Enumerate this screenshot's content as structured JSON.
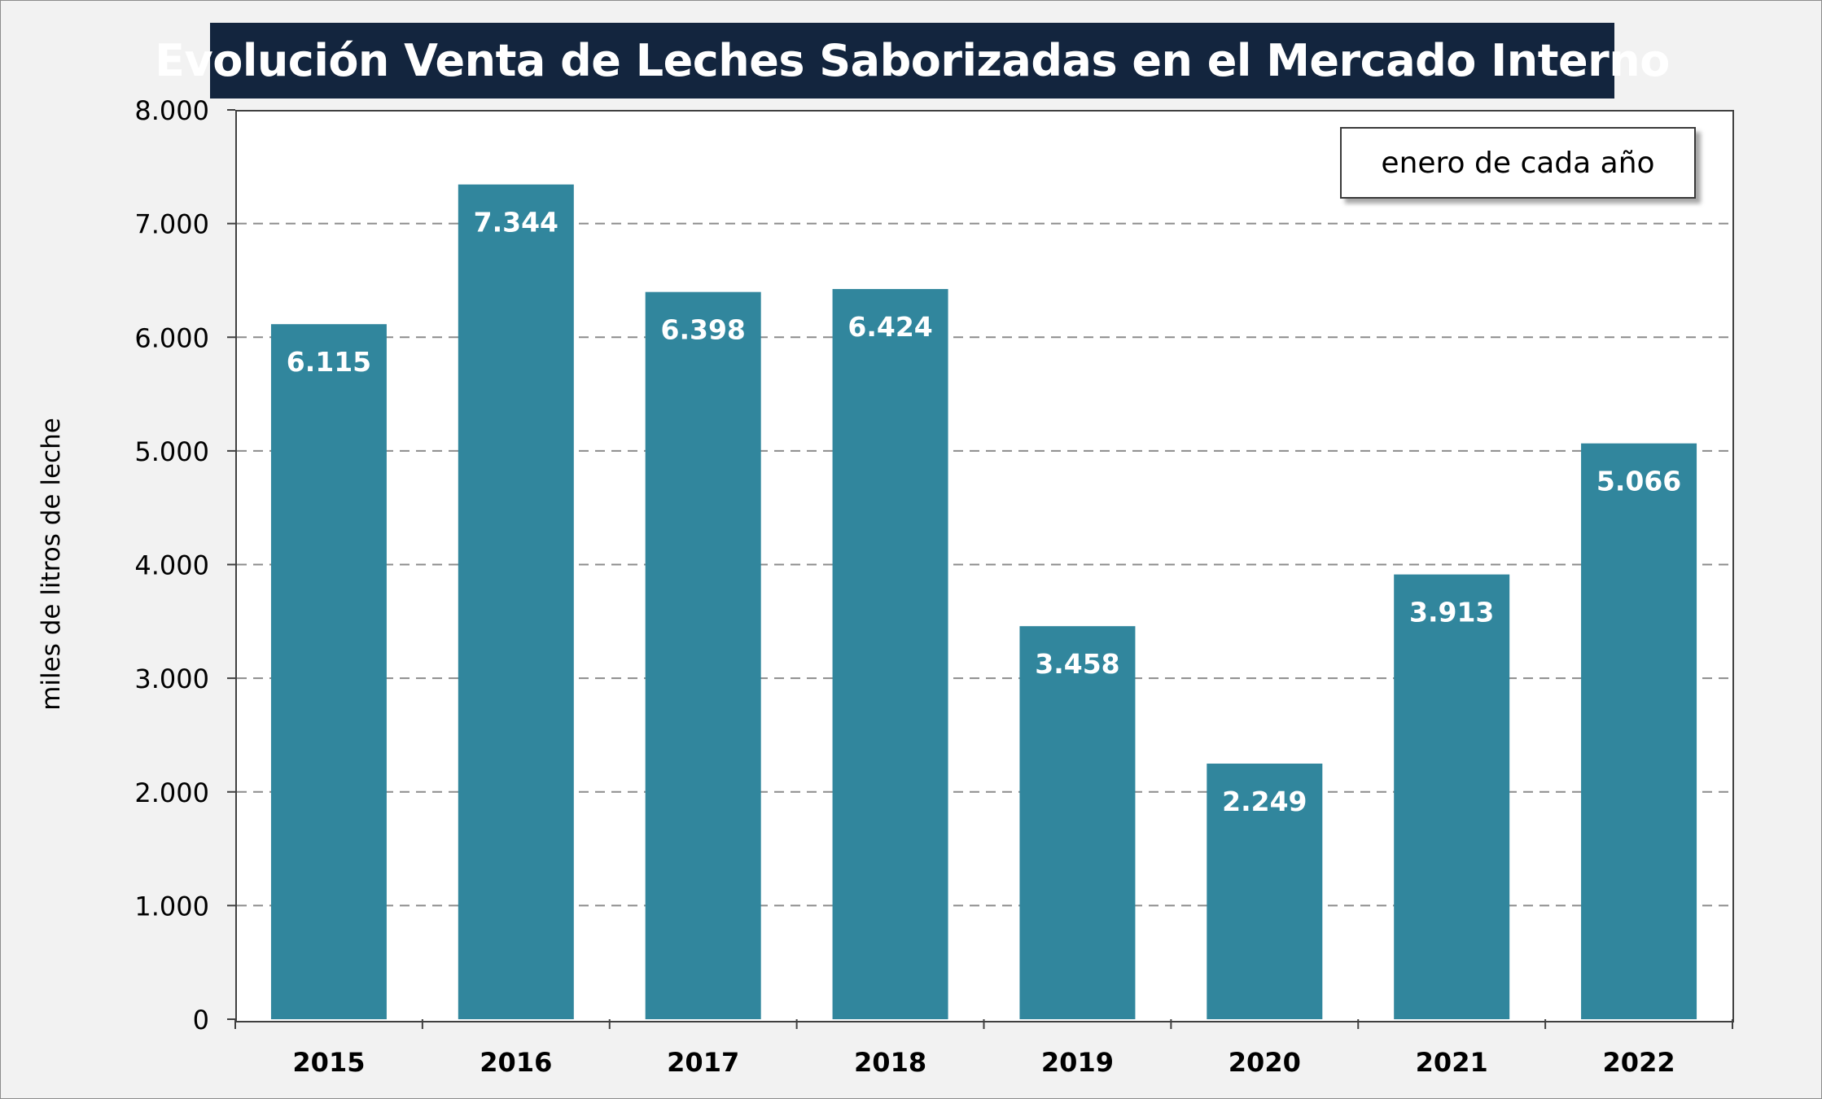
{
  "chart_data": {
    "type": "bar",
    "title": "Evolución Venta de Leches Saborizadas en el Mercado Interno",
    "annotation": "enero de cada año",
    "xlabel": "",
    "ylabel": "miles de litros de leche",
    "categories": [
      "2015",
      "2016",
      "2017",
      "2018",
      "2019",
      "2020",
      "2021",
      "2022"
    ],
    "values": [
      6115,
      7344,
      6398,
      6424,
      3458,
      2249,
      3913,
      5066
    ],
    "data_labels": [
      "6.115",
      "7.344",
      "6.398",
      "6.424",
      "3.458",
      "2.249",
      "3.913",
      "5.066"
    ],
    "ylim": [
      0,
      8000
    ],
    "yticks": [
      0,
      1000,
      2000,
      3000,
      4000,
      5000,
      6000,
      7000,
      8000
    ],
    "ytick_labels": [
      "0",
      "1.000",
      "2.000",
      "3.000",
      "4.000",
      "5.000",
      "6.000",
      "7.000",
      "8.000"
    ],
    "grid": true,
    "bar_color": "#31869d",
    "legend": "none"
  }
}
